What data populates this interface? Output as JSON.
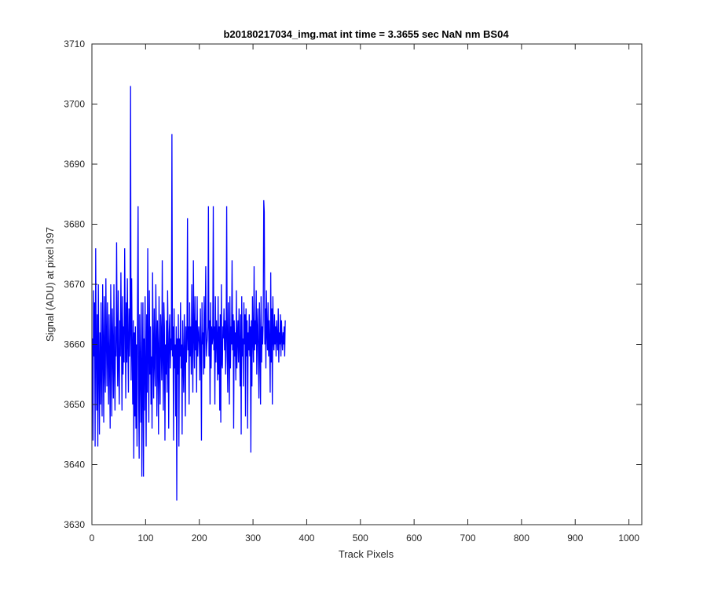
{
  "chart_data": {
    "type": "line",
    "title": "b20180217034_img.mat int time = 3.3655 sec  NaN nm BS04",
    "xlabel": "Track Pixels",
    "ylabel": "Signal (ADU) at pixel 397",
    "xlim": [
      0,
      1024
    ],
    "ylim": [
      3630,
      3710
    ],
    "xticks": [
      0,
      100,
      200,
      300,
      400,
      500,
      600,
      700,
      800,
      900,
      1000
    ],
    "yticks": [
      3630,
      3640,
      3650,
      3660,
      3670,
      3680,
      3690,
      3700,
      3710
    ],
    "grid": false,
    "legend": "none",
    "series": [
      {
        "color": "#0000ff",
        "x_start": 1,
        "x_step": 1,
        "values": [
          3661,
          3644,
          3669,
          3658,
          3667,
          3643,
          3676,
          3659,
          3649,
          3665,
          3643,
          3670,
          3657,
          3645,
          3662,
          3650,
          3667,
          3655,
          3648,
          3670,
          3659,
          3647,
          3668,
          3656,
          3652,
          3671,
          3661,
          3653,
          3667,
          3658,
          3650,
          3665,
          3657,
          3646,
          3670,
          3662,
          3648,
          3666,
          3659,
          3651,
          3670,
          3656,
          3649,
          3663,
          3658,
          3677,
          3661,
          3653,
          3669,
          3656,
          3650,
          3664,
          3658,
          3672,
          3661,
          3649,
          3668,
          3655,
          3663,
          3657,
          3676,
          3664,
          3651,
          3667,
          3657,
          3671,
          3660,
          3652,
          3666,
          3658,
          3662,
          3703,
          3654,
          3671,
          3659,
          3650,
          3664,
          3641,
          3662,
          3648,
          3663,
          3646,
          3660,
          3643,
          3668,
          3683,
          3652,
          3641,
          3665,
          3656,
          3647,
          3667,
          3638,
          3655,
          3667,
          3638,
          3661,
          3649,
          3668,
          3655,
          3643,
          3665,
          3652,
          3676,
          3658,
          3647,
          3669,
          3655,
          3663,
          3650,
          3658,
          3646,
          3672,
          3659,
          3651,
          3666,
          3657,
          3653,
          3670,
          3662,
          3648,
          3664,
          3659,
          3645,
          3668,
          3656,
          3650,
          3665,
          3661,
          3654,
          3674,
          3658,
          3649,
          3667,
          3663,
          3644,
          3660,
          3655,
          3664,
          3652,
          3669,
          3660,
          3646,
          3662,
          3665,
          3656,
          3661,
          3659,
          3695,
          3658,
          3663,
          3644,
          3666,
          3656,
          3660,
          3648,
          3663,
          3634,
          3661,
          3655,
          3665,
          3643,
          3661,
          3658,
          3667,
          3656,
          3660,
          3645,
          3664,
          3657,
          3652,
          3665,
          3659,
          3648,
          3663,
          3657,
          3661,
          3681,
          3659,
          3663,
          3650,
          3667,
          3658,
          3663,
          3655,
          3670,
          3660,
          3652,
          3674,
          3662,
          3656,
          3668,
          3659,
          3664,
          3652,
          3668,
          3658,
          3661,
          3663,
          3660,
          3654,
          3666,
          3659,
          3644,
          3667,
          3660,
          3662,
          3655,
          3668,
          3656,
          3664,
          3673,
          3658,
          3660,
          3661,
          3663,
          3683,
          3658,
          3664,
          3650,
          3667,
          3656,
          3663,
          3660,
          3661,
          3683,
          3659,
          3663,
          3650,
          3668,
          3657,
          3664,
          3661,
          3654,
          3668,
          3655,
          3663,
          3649,
          3665,
          3647,
          3670,
          3657,
          3656,
          3663,
          3661,
          3666,
          3659,
          3664,
          3655,
          3661,
          3683,
          3658,
          3652,
          3667,
          3660,
          3650,
          3668,
          3656,
          3663,
          3660,
          3674,
          3659,
          3665,
          3646,
          3664,
          3658,
          3662,
          3654,
          3669,
          3656,
          3661,
          3664,
          3657,
          3666,
          3660,
          3653,
          3665,
          3645,
          3668,
          3658,
          3661,
          3653,
          3667,
          3660,
          3665,
          3648,
          3666,
          3658,
          3664,
          3646,
          3662,
          3659,
          3665,
          3658,
          3663,
          3642,
          3664,
          3653,
          3668,
          3661,
          3657,
          3673,
          3659,
          3664,
          3660,
          3669,
          3655,
          3662,
          3666,
          3658,
          3651,
          3667,
          3661,
          3650,
          3668,
          3657,
          3663,
          3660,
          3664,
          3684,
          3682,
          3660,
          3666,
          3656,
          3669,
          3662,
          3659,
          3667,
          3658,
          3664,
          3660,
          3652,
          3672,
          3657,
          3666,
          3650,
          3668,
          3661,
          3659,
          3665,
          3660,
          3663,
          3658,
          3664,
          3661,
          3659,
          3666,
          3657,
          3662,
          3660,
          3665,
          3658,
          3664,
          3661,
          3659,
          3662,
          3660,
          3663,
          3658,
          3664
        ]
      }
    ]
  }
}
